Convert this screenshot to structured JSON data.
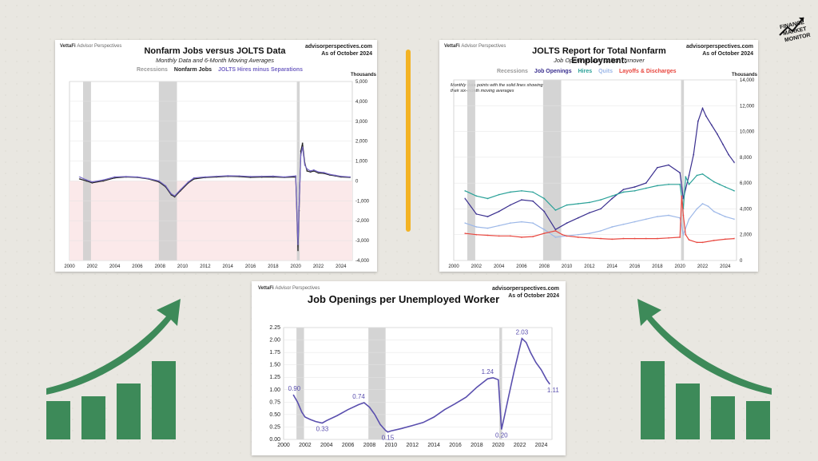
{
  "logo": {
    "line1": "FINANCE",
    "line2": "MARKET",
    "line3": "MONITOR"
  },
  "colors": {
    "accent": "#f3b324",
    "green": "#3d8a59",
    "purple": "#5a4fae",
    "recession": "#cfcfcf"
  },
  "chart_data": [
    {
      "type": "line",
      "brand": "VettaFi",
      "brand_sub": "Advisor Perspectives",
      "source": "advisorperspectives.com",
      "asof": "As of October 2024",
      "title": "Nonfarm Jobs versus JOLTS Data",
      "subtitle": "Monthly Data and 6-Month Moving Averages",
      "legend": [
        "Recessions",
        "Nonfarm Jobs",
        "JOLTS Hires minus Separations"
      ],
      "units": "Thousands",
      "xlim": [
        2000,
        2025
      ],
      "ylim": [
        -4000,
        5000
      ],
      "xticks": [
        "2000",
        "2002",
        "2004",
        "2006",
        "2008",
        "2010",
        "2012",
        "2014",
        "2016",
        "2018",
        "2020",
        "2022",
        "2024"
      ],
      "yticks": [
        "5,000",
        "4,000",
        "3,000",
        "2,000",
        "1,000",
        "0",
        "-1,000",
        "-2,000",
        "-3,000",
        "-4,000"
      ],
      "recessions": [
        [
          2001.2,
          2001.9
        ],
        [
          2007.9,
          2009.5
        ],
        [
          2020.1,
          2020.35
        ]
      ],
      "series": [
        {
          "name": "Nonfarm Jobs",
          "color": "#222222",
          "x": [
            2000.9,
            2001.5,
            2002,
            2003,
            2004,
            2005,
            2006,
            2007,
            2007.9,
            2008.5,
            2009,
            2009.3,
            2009.8,
            2010.5,
            2011,
            2012,
            2013,
            2014,
            2015,
            2016,
            2017,
            2018,
            2019,
            2020.0,
            2020.2,
            2020.3,
            2020.45,
            2020.6,
            2020.8,
            2021,
            2021.3,
            2021.6,
            2022,
            2022.5,
            2023,
            2023.5,
            2024,
            2024.8
          ],
          "y": [
            100,
            0,
            -100,
            0,
            150,
            200,
            180,
            100,
            -50,
            -300,
            -700,
            -800,
            -500,
            -100,
            100,
            170,
            200,
            230,
            220,
            180,
            190,
            200,
            180,
            200,
            -3500,
            -1500,
            1500,
            1900,
            900,
            500,
            450,
            500,
            400,
            380,
            300,
            250,
            200,
            180
          ]
        },
        {
          "name": "JOLTS Hires minus Separations",
          "color": "#7566c4",
          "x": [
            2000.9,
            2001.5,
            2002,
            2003,
            2004,
            2005,
            2006,
            2007,
            2007.9,
            2008.5,
            2009,
            2009.3,
            2009.8,
            2010.5,
            2011,
            2012,
            2013,
            2014,
            2015,
            2016,
            2017,
            2018,
            2019,
            2020.0,
            2020.2,
            2020.3,
            2020.45,
            2020.6,
            2020.8,
            2021,
            2021.3,
            2021.6,
            2022,
            2022.5,
            2023,
            2023.5,
            2024,
            2024.8
          ],
          "y": [
            200,
            50,
            -50,
            50,
            200,
            220,
            200,
            120,
            0,
            -250,
            -650,
            -750,
            -450,
            -50,
            150,
            200,
            230,
            260,
            250,
            220,
            230,
            240,
            200,
            250,
            -3200,
            -1300,
            1300,
            1700,
            800,
            600,
            500,
            550,
            450,
            420,
            330,
            280,
            230,
            200
          ]
        }
      ]
    },
    {
      "type": "line",
      "brand": "VettaFi",
      "brand_sub": "Advisor Perspectives",
      "source": "advisorperspectives.com",
      "asof": "As of October 2024",
      "title": "JOLTS Report for Total Nonfarm Employment:",
      "subtitle": "Job Openings and Labor Turnover",
      "legend": [
        "Recessions",
        "Job Openings",
        "Hires",
        "Quits",
        "Layoffs & Discharges"
      ],
      "note": "Monthly data points with the solid lines showing their six-month moving averages",
      "units": "Thousands",
      "xlim": [
        2000,
        2025
      ],
      "ylim": [
        0,
        14000
      ],
      "xticks": [
        "2000",
        "2002",
        "2004",
        "2006",
        "2008",
        "2010",
        "2012",
        "2014",
        "2016",
        "2018",
        "2020",
        "2022",
        "2024"
      ],
      "yticks": [
        "14,000",
        "12,000",
        "10,000",
        "8,000",
        "6,000",
        "4,000",
        "2,000",
        "0"
      ],
      "recessions": [
        [
          2001.2,
          2001.9
        ],
        [
          2007.9,
          2009.5
        ],
        [
          2020.1,
          2020.35
        ]
      ],
      "series": [
        {
          "name": "Job Openings",
          "color": "#3a2f8f",
          "x": [
            2001,
            2002,
            2003,
            2004,
            2005,
            2006,
            2007,
            2008,
            2009,
            2010,
            2011,
            2012,
            2013,
            2014,
            2015,
            2016,
            2017,
            2018,
            2019,
            2020,
            2020.3,
            2020.8,
            2021.2,
            2021.6,
            2022,
            2022.3,
            2022.8,
            2023.3,
            2023.8,
            2024.3,
            2024.8
          ],
          "y": [
            4800,
            3600,
            3400,
            3800,
            4300,
            4700,
            4600,
            3800,
            2400,
            2900,
            3300,
            3700,
            4000,
            4800,
            5500,
            5700,
            6000,
            7200,
            7400,
            6800,
            4800,
            6600,
            8200,
            10800,
            11800,
            11200,
            10500,
            9800,
            9000,
            8200,
            7600
          ]
        },
        {
          "name": "Hires",
          "color": "#2aa198",
          "x": [
            2001,
            2002,
            2003,
            2004,
            2005,
            2006,
            2007,
            2008,
            2009,
            2010,
            2011,
            2012,
            2013,
            2014,
            2015,
            2016,
            2017,
            2018,
            2019,
            2020,
            2020.3,
            2020.5,
            2020.8,
            2021.5,
            2022,
            2022.5,
            2023,
            2023.5,
            2024,
            2024.8
          ],
          "y": [
            5400,
            5000,
            4800,
            5100,
            5300,
            5400,
            5300,
            4800,
            3900,
            4300,
            4400,
            4500,
            4700,
            5000,
            5300,
            5400,
            5600,
            5800,
            5900,
            5900,
            4000,
            6500,
            5900,
            6600,
            6700,
            6400,
            6100,
            5900,
            5700,
            5400
          ]
        },
        {
          "name": "Quits",
          "color": "#9db8e8",
          "x": [
            2001,
            2002,
            2003,
            2004,
            2005,
            2006,
            2007,
            2008,
            2009,
            2010,
            2011,
            2012,
            2013,
            2014,
            2015,
            2016,
            2017,
            2018,
            2019,
            2020,
            2020.3,
            2020.8,
            2021.5,
            2022,
            2022.5,
            2023,
            2023.5,
            2024,
            2024.8
          ],
          "y": [
            2900,
            2600,
            2500,
            2700,
            2900,
            3000,
            2900,
            2400,
            1800,
            1900,
            2000,
            2100,
            2300,
            2600,
            2800,
            3000,
            3200,
            3400,
            3500,
            3300,
            2000,
            3200,
            4000,
            4400,
            4200,
            3800,
            3600,
            3400,
            3200
          ]
        },
        {
          "name": "Layoffs & Discharges",
          "color": "#e8473f",
          "x": [
            2001,
            2002,
            2003,
            2004,
            2005,
            2006,
            2007,
            2008,
            2009,
            2009.6,
            2010,
            2011,
            2012,
            2013,
            2014,
            2015,
            2016,
            2017,
            2018,
            2019,
            2020,
            2020.15,
            2020.3,
            2020.5,
            2020.8,
            2021.5,
            2022,
            2023,
            2024,
            2024.8
          ],
          "y": [
            2100,
            2000,
            1950,
            1900,
            1900,
            1800,
            1850,
            2100,
            2300,
            2000,
            1900,
            1800,
            1750,
            1700,
            1650,
            1700,
            1700,
            1700,
            1700,
            1750,
            1800,
            5000,
            3500,
            2000,
            1600,
            1400,
            1400,
            1550,
            1650,
            1700
          ]
        }
      ]
    },
    {
      "type": "line",
      "brand": "VettaFi",
      "brand_sub": "Advisor Perspectives",
      "source": "advisorperspectives.com",
      "asof": "As of October 2024",
      "title": "Job Openings per Unemployed Worker",
      "xlim": [
        2000,
        2025
      ],
      "ylim": [
        0,
        2.25
      ],
      "xticks": [
        "2000",
        "2002",
        "2004",
        "2006",
        "2008",
        "2010",
        "2012",
        "2014",
        "2016",
        "2018",
        "2020",
        "2022",
        "2024"
      ],
      "yticks": [
        "2.25",
        "2.00",
        "1.75",
        "1.50",
        "1.25",
        "1.00",
        "0.75",
        "0.50",
        "0.25",
        "0.00"
      ],
      "recessions": [
        [
          2001.2,
          2001.9
        ],
        [
          2007.9,
          2009.5
        ],
        [
          2020.1,
          2020.35
        ]
      ],
      "annotations": [
        {
          "label": "0.90",
          "x": 2001.0,
          "y": 0.9
        },
        {
          "label": "0.33",
          "x": 2003.6,
          "y": 0.33
        },
        {
          "label": "0.74",
          "x": 2007.0,
          "y": 0.74
        },
        {
          "label": "0.15",
          "x": 2009.7,
          "y": 0.15
        },
        {
          "label": "1.24",
          "x": 2019.0,
          "y": 1.24
        },
        {
          "label": "0.20",
          "x": 2020.3,
          "y": 0.2
        },
        {
          "label": "2.03",
          "x": 2022.2,
          "y": 2.03
        },
        {
          "label": "1.11",
          "x": 2024.8,
          "y": 1.11
        }
      ],
      "series": [
        {
          "name": "Job Openings per Unemployed Worker",
          "color": "#5a4fae",
          "x": [
            2000.9,
            2001.3,
            2001.7,
            2002,
            2002.5,
            2003,
            2003.6,
            2004,
            2005,
            2006,
            2007,
            2007.5,
            2008,
            2008.5,
            2009,
            2009.5,
            2009.7,
            2010,
            2011,
            2012,
            2013,
            2014,
            2015,
            2016,
            2017,
            2018,
            2019,
            2019.5,
            2020.0,
            2020.3,
            2020.6,
            2021,
            2021.5,
            2022,
            2022.2,
            2022.6,
            2023,
            2023.5,
            2024,
            2024.5,
            2024.8
          ],
          "y": [
            0.9,
            0.75,
            0.55,
            0.45,
            0.4,
            0.36,
            0.33,
            0.38,
            0.48,
            0.6,
            0.7,
            0.74,
            0.65,
            0.5,
            0.3,
            0.18,
            0.15,
            0.17,
            0.22,
            0.28,
            0.34,
            0.45,
            0.6,
            0.72,
            0.85,
            1.05,
            1.22,
            1.24,
            1.2,
            0.2,
            0.5,
            0.9,
            1.4,
            1.85,
            2.03,
            1.95,
            1.75,
            1.55,
            1.4,
            1.2,
            1.11
          ]
        }
      ]
    }
  ]
}
